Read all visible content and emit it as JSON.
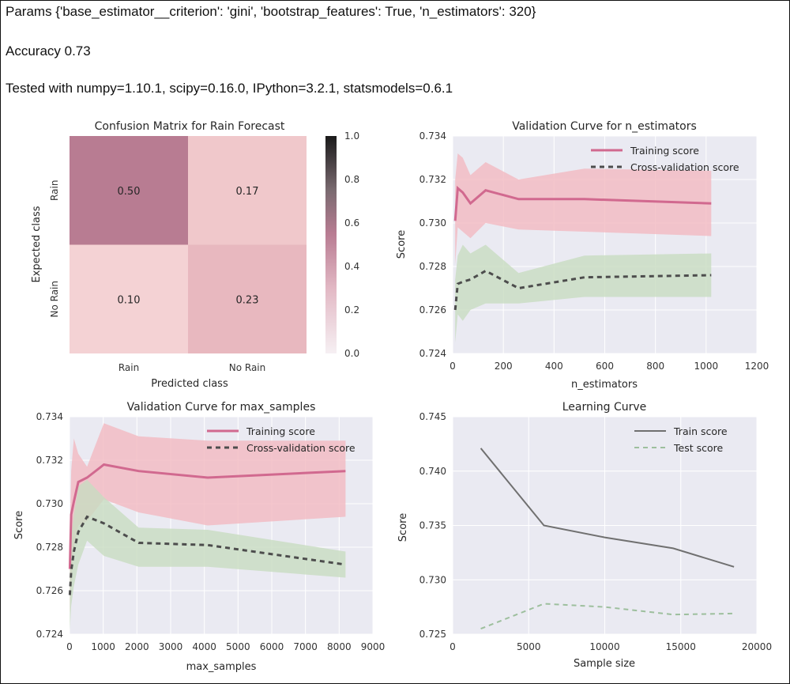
{
  "header": {
    "params_text": "Params {'base_estimator__criterion': 'gini', 'bootstrap_features': True, 'n_estimators': 320}",
    "accuracy_text": "Accuracy 0.73",
    "versions_text": "Tested with numpy=1.10.1, scipy=0.16.0, IPython=3.2.1, statsmodels=0.6.1"
  },
  "colors": {
    "plot_bg": "#eaeaf2",
    "grid": "#ffffff",
    "training": "#d1698f",
    "training_band": "#f2b9c0",
    "cv": "#4d4d4d",
    "cv_band": "#c8dcc0",
    "learning_train": "#707070",
    "learning_test": "#9dbf9d"
  },
  "chart_data": [
    {
      "type": "heatmap",
      "title": "Confusion Matrix for Rain Forecast",
      "xlabel": "Predicted class",
      "ylabel": "Expected class",
      "x_categories": [
        "Rain",
        "No Rain"
      ],
      "y_categories": [
        "Rain",
        "No Rain"
      ],
      "values": [
        [
          0.5,
          0.17
        ],
        [
          0.1,
          0.23
        ]
      ],
      "cell_labels": [
        [
          "0.50",
          "0.17"
        ],
        [
          "0.10",
          "0.23"
        ]
      ],
      "colorbar": {
        "min": 0.0,
        "max": 1.0,
        "ticks": [
          "0.0",
          "0.2",
          "0.4",
          "0.6",
          "0.8",
          "1.0"
        ]
      }
    },
    {
      "type": "line",
      "title": "Validation Curve for n_estimators",
      "xlabel": "n_estimators",
      "ylabel": "Score",
      "xlim": [
        0,
        1200
      ],
      "ylim": [
        0.724,
        0.734
      ],
      "xticks": [
        "0",
        "200",
        "400",
        "600",
        "800",
        "1000",
        "1200"
      ],
      "yticks": [
        "0.724",
        "0.726",
        "0.728",
        "0.730",
        "0.732",
        "0.734"
      ],
      "legend_position": "top-right",
      "x": [
        10,
        20,
        40,
        70,
        130,
        260,
        520,
        1020
      ],
      "series": [
        {
          "name": "Training score",
          "values": [
            0.7301,
            0.7316,
            0.7314,
            0.7309,
            0.7315,
            0.7311,
            0.7311,
            0.7309
          ],
          "lower": [
            0.7281,
            0.7298,
            0.7296,
            0.7293,
            0.73,
            0.7297,
            0.7296,
            0.7294
          ],
          "upper": [
            0.732,
            0.7332,
            0.733,
            0.7322,
            0.7328,
            0.732,
            0.7325,
            0.7324
          ]
        },
        {
          "name": "Cross-validation score",
          "values": [
            0.726,
            0.7272,
            0.7273,
            0.7274,
            0.7278,
            0.727,
            0.7275,
            0.7276
          ],
          "lower": [
            0.7245,
            0.7258,
            0.7255,
            0.726,
            0.7263,
            0.7263,
            0.7266,
            0.7266
          ],
          "upper": [
            0.7274,
            0.7285,
            0.729,
            0.7286,
            0.729,
            0.7277,
            0.7285,
            0.7286
          ]
        }
      ]
    },
    {
      "type": "line",
      "title": "Validation Curve for max_samples",
      "xlabel": "max_samples",
      "ylabel": "Score",
      "xlim": [
        0,
        9000
      ],
      "ylim": [
        0.724,
        0.734
      ],
      "xticks": [
        "0",
        "1000",
        "2000",
        "3000",
        "4000",
        "5000",
        "6000",
        "7000",
        "8000",
        "9000"
      ],
      "yticks": [
        "0.724",
        "0.726",
        "0.728",
        "0.730",
        "0.732",
        "0.734"
      ],
      "legend_position": "top-right",
      "x": [
        10,
        50,
        130,
        260,
        520,
        1020,
        2050,
        4100,
        8190
      ],
      "series": [
        {
          "name": "Training score",
          "values": [
            0.727,
            0.7295,
            0.7301,
            0.731,
            0.7312,
            0.7318,
            0.7315,
            0.7312,
            0.7315
          ],
          "lower": [
            0.725,
            0.7262,
            0.728,
            0.729,
            0.7292,
            0.7302,
            0.7296,
            0.729,
            0.7294
          ],
          "upper": [
            0.7285,
            0.7315,
            0.733,
            0.7323,
            0.7317,
            0.7337,
            0.7331,
            0.7329,
            0.7329
          ]
        },
        {
          "name": "Cross-validation score",
          "values": [
            0.7258,
            0.7269,
            0.7278,
            0.7287,
            0.7294,
            0.7291,
            0.7282,
            0.7281,
            0.7272
          ],
          "lower": [
            0.7242,
            0.7253,
            0.7262,
            0.7272,
            0.7283,
            0.7276,
            0.7271,
            0.7271,
            0.7266
          ],
          "upper": [
            0.7268,
            0.7285,
            0.7295,
            0.7308,
            0.7311,
            0.7303,
            0.7289,
            0.7288,
            0.7278
          ]
        }
      ]
    },
    {
      "type": "line",
      "title": "Learning Curve",
      "xlabel": "Sample size",
      "ylabel": "Score",
      "xlim": [
        0,
        20000
      ],
      "ylim": [
        0.725,
        0.745
      ],
      "xticks": [
        "0",
        "5000",
        "10000",
        "15000",
        "20000"
      ],
      "yticks": [
        "0.725",
        "0.730",
        "0.735",
        "0.740",
        "0.745"
      ],
      "legend_position": "top-right",
      "x": [
        1850,
        6000,
        10000,
        14500,
        18500
      ],
      "series": [
        {
          "name": "Train score",
          "values": [
            0.7421,
            0.735,
            0.7339,
            0.7329,
            0.7312
          ]
        },
        {
          "name": "Test score",
          "values": [
            0.7255,
            0.7278,
            0.7275,
            0.7268,
            0.7269
          ]
        }
      ]
    }
  ]
}
